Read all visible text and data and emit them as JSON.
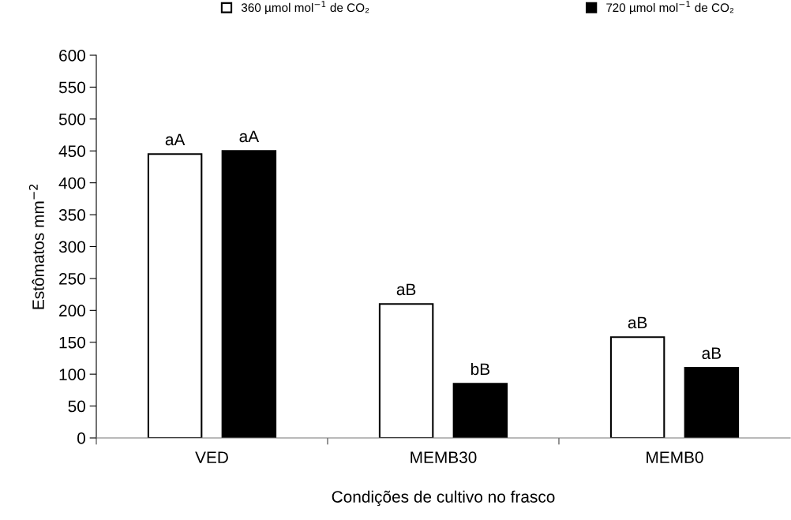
{
  "chart_data": {
    "type": "bar",
    "xlabel": "Condições de cultivo no frasco",
    "ylabel": "Estômatos mm$^{−2}$",
    "categories": [
      "VED",
      "MEMB30",
      "MEMB0"
    ],
    "series": [
      {
        "name": "360 µmol mol$^{−1}$ de CO₂",
        "color": "#ffffff",
        "values": [
          445,
          210,
          158
        ],
        "value_labels": [
          "aA",
          "aB",
          "aB"
        ]
      },
      {
        "name": "720 µmol mol$^{−1}$ de CO₂",
        "color": "#000000",
        "values": [
          450,
          85,
          110
        ],
        "value_labels": [
          "aA",
          "bB",
          "aB"
        ]
      }
    ],
    "ylim": [
      0,
      600
    ],
    "yticks": [
      0,
      50,
      100,
      150,
      200,
      250,
      300,
      350,
      400,
      450,
      500,
      550,
      600
    ],
    "grid": false,
    "legend": "top"
  }
}
